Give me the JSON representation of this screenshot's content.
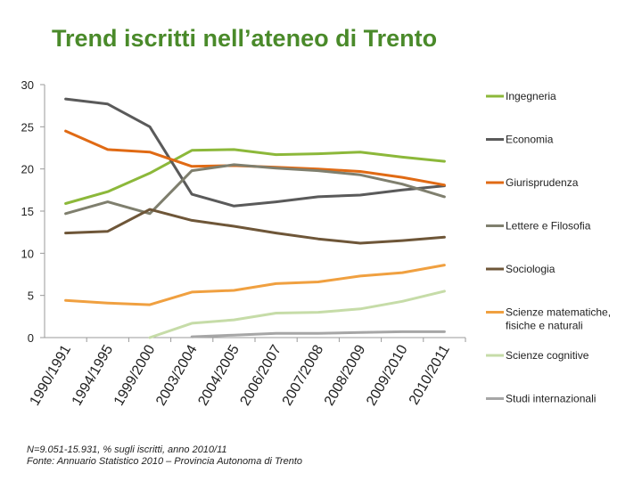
{
  "title": "Trend iscritti nell’ateneo di Trento",
  "footnote": {
    "line1": "N=9.051-15.931, % sugli iscritti, anno 2010/11",
    "line2": "Fonte: Annuario Statistico 2010 – Provincia Autonoma di Trento"
  },
  "chart_data": {
    "type": "line",
    "title": "Trend iscritti nell’ateneo di Trento",
    "categories": [
      "1990/1991",
      "1994/1995",
      "1999/2000",
      "2003/2004",
      "2004/2005",
      "2006/2007",
      "2007/2008",
      "2008/2009",
      "2009/2010",
      "2010/2011"
    ],
    "ylim": [
      0,
      30
    ],
    "yticks": [
      0,
      5,
      10,
      15,
      20,
      25,
      30
    ],
    "grid": false,
    "legend_position": "right",
    "series": [
      {
        "name": "Ingegneria",
        "color": "#8cb83a",
        "values": [
          15.9,
          17.3,
          19.5,
          22.2,
          22.3,
          21.7,
          21.8,
          22.0,
          21.4,
          20.9
        ]
      },
      {
        "name": "Economia",
        "color": "#5a5a5a",
        "values": [
          28.3,
          27.7,
          25.0,
          17.0,
          15.6,
          16.1,
          16.7,
          16.9,
          17.5,
          18.0
        ]
      },
      {
        "name": "Giurisprudenza",
        "color": "#e06a14",
        "values": [
          24.5,
          22.3,
          22.0,
          20.3,
          20.4,
          20.2,
          20.0,
          19.7,
          19.0,
          18.1
        ]
      },
      {
        "name": "Lettere e Filosofia",
        "color": "#7f7f6e",
        "values": [
          14.7,
          16.1,
          14.7,
          19.8,
          20.5,
          20.1,
          19.8,
          19.3,
          18.2,
          16.7
        ]
      },
      {
        "name": "Sociologia",
        "color": "#6e5638",
        "values": [
          12.4,
          12.6,
          15.2,
          13.9,
          13.2,
          12.4,
          11.7,
          11.2,
          11.5,
          11.9
        ]
      },
      {
        "name": "Scienze matematiche, fisiche e naturali",
        "color": "#f0a040",
        "values": [
          4.4,
          4.1,
          3.9,
          5.4,
          5.6,
          6.4,
          6.6,
          7.3,
          7.7,
          8.6
        ]
      },
      {
        "name": "Scienze cognitive",
        "color": "#c6dca8",
        "values": [
          null,
          null,
          0.0,
          1.7,
          2.1,
          2.9,
          3.0,
          3.4,
          4.3,
          5.5
        ]
      },
      {
        "name": "Studi internazionali",
        "color": "#a6a6a6",
        "values": [
          null,
          null,
          null,
          0.1,
          0.3,
          0.5,
          0.5,
          0.6,
          0.7,
          0.7
        ]
      }
    ]
  }
}
